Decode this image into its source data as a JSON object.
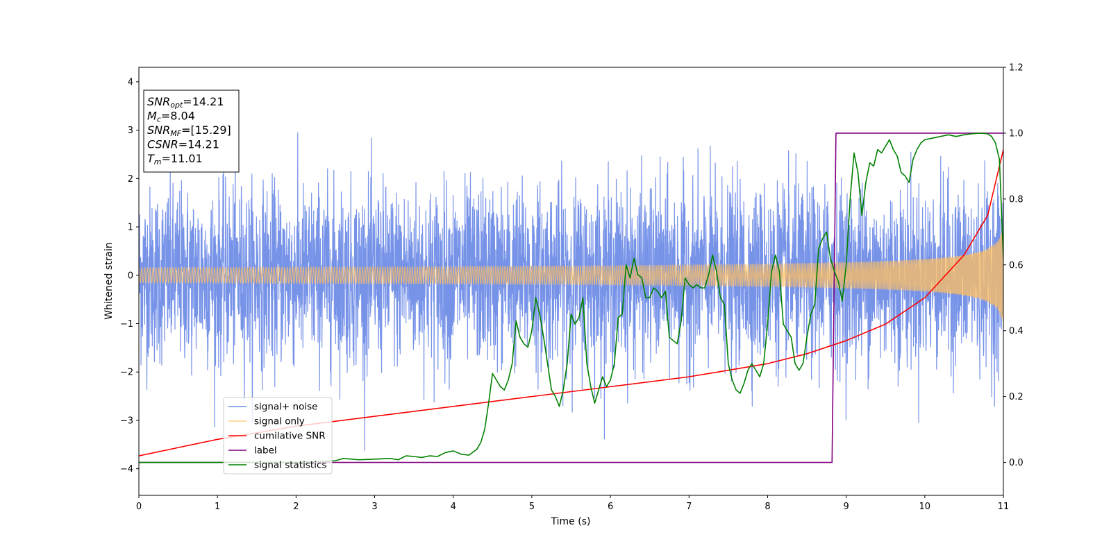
{
  "chart_data": {
    "type": "line",
    "xlabel": "Time (s)",
    "ylabel_left": "Whitened strain",
    "xlim": [
      0,
      11
    ],
    "ylim_left": [
      -4.55,
      4.3
    ],
    "ylim_right": [
      -0.1,
      1.2
    ],
    "x_ticks": [
      0,
      1,
      2,
      3,
      4,
      5,
      6,
      7,
      8,
      9,
      10,
      11
    ],
    "y_ticks_left": [
      -4,
      -3,
      -2,
      -1,
      0,
      1,
      2,
      3,
      4
    ],
    "y_ticks_right": [
      "0.0",
      "0.2",
      "0.4",
      "0.6",
      "0.8",
      "1.0",
      "1.2"
    ],
    "legend_position": "lower-left",
    "annotation": [
      {
        "sym": "SNR",
        "sub": "opt",
        "eq": "=14.21"
      },
      {
        "sym": "M",
        "sub": "c",
        "eq": "=8.04"
      },
      {
        "sym": "SNR",
        "sub": "MF",
        "eq": "=[15.29]"
      },
      {
        "sym": "CSNR",
        "sub": "",
        "eq": "=14.21"
      },
      {
        "sym": "T",
        "sub": "m",
        "eq": "=11.01"
      }
    ],
    "series": [
      {
        "name": "signal+ noise",
        "color": "#6b8ae6",
        "axis": "left",
        "kind": "noise",
        "noise_std": 0.9,
        "x_range": [
          0,
          11
        ]
      },
      {
        "name": "signal only",
        "color": "#ffbf60",
        "axis": "left",
        "kind": "chirp",
        "amplitude_start": 0.05,
        "amplitude_end": 1.0,
        "x_range": [
          0,
          11
        ]
      },
      {
        "name": "cumilative SNR",
        "color": "#ff0000",
        "axis": "right",
        "x": [
          0,
          1,
          2,
          3,
          4,
          5,
          6,
          7,
          8,
          8.5,
          9,
          9.5,
          10,
          10.5,
          10.8,
          11
        ],
        "y": [
          0.02,
          0.07,
          0.11,
          0.14,
          0.17,
          0.2,
          0.23,
          0.26,
          0.3,
          0.33,
          0.37,
          0.42,
          0.5,
          0.63,
          0.75,
          0.95
        ]
      },
      {
        "name": "label",
        "color": "#800080",
        "axis": "right",
        "x": [
          0,
          8.82,
          8.87,
          11
        ],
        "y": [
          0,
          0,
          1,
          1
        ]
      },
      {
        "name": "signal statistics",
        "color": "#008000",
        "axis": "right",
        "x": [
          0,
          0.5,
          1,
          1.5,
          2,
          2.5,
          2.6,
          2.8,
          3,
          3.2,
          3.3,
          3.4,
          3.5,
          3.6,
          3.7,
          3.8,
          3.9,
          4,
          4.1,
          4.2,
          4.3,
          4.35,
          4.4,
          4.45,
          4.5,
          4.55,
          4.6,
          4.65,
          4.7,
          4.75,
          4.8,
          4.85,
          4.9,
          4.95,
          5,
          5.05,
          5.1,
          5.15,
          5.2,
          5.25,
          5.3,
          5.35,
          5.4,
          5.45,
          5.5,
          5.55,
          5.6,
          5.65,
          5.7,
          5.75,
          5.8,
          5.85,
          5.9,
          5.95,
          6,
          6.05,
          6.1,
          6.15,
          6.2,
          6.25,
          6.3,
          6.35,
          6.4,
          6.45,
          6.5,
          6.55,
          6.6,
          6.65,
          6.7,
          6.75,
          6.8,
          6.85,
          6.9,
          6.95,
          7,
          7.05,
          7.1,
          7.15,
          7.2,
          7.25,
          7.3,
          7.35,
          7.4,
          7.45,
          7.5,
          7.55,
          7.6,
          7.65,
          7.7,
          7.75,
          7.8,
          7.85,
          7.9,
          7.95,
          8,
          8.05,
          8.1,
          8.15,
          8.2,
          8.25,
          8.3,
          8.35,
          8.4,
          8.45,
          8.5,
          8.55,
          8.6,
          8.65,
          8.7,
          8.75,
          8.8,
          8.85,
          8.9,
          8.95,
          9,
          9.05,
          9.1,
          9.15,
          9.2,
          9.25,
          9.3,
          9.35,
          9.4,
          9.45,
          9.5,
          9.55,
          9.6,
          9.65,
          9.7,
          9.75,
          9.8,
          9.85,
          9.9,
          9.95,
          10,
          10.1,
          10.2,
          10.3,
          10.4,
          10.5,
          10.6,
          10.7,
          10.8,
          10.85,
          10.9,
          10.95,
          11
        ],
        "y": [
          0,
          0,
          0,
          0,
          0,
          0.005,
          0.012,
          0.008,
          0.01,
          0.012,
          0.008,
          0.02,
          0.018,
          0.015,
          0.02,
          0.018,
          0.03,
          0.035,
          0.025,
          0.022,
          0.04,
          0.06,
          0.1,
          0.18,
          0.27,
          0.25,
          0.23,
          0.22,
          0.25,
          0.3,
          0.43,
          0.38,
          0.36,
          0.35,
          0.4,
          0.5,
          0.45,
          0.38,
          0.3,
          0.22,
          0.2,
          0.17,
          0.22,
          0.3,
          0.45,
          0.42,
          0.44,
          0.5,
          0.3,
          0.23,
          0.18,
          0.22,
          0.26,
          0.23,
          0.25,
          0.3,
          0.44,
          0.45,
          0.6,
          0.56,
          0.62,
          0.57,
          0.56,
          0.5,
          0.5,
          0.53,
          0.52,
          0.5,
          0.52,
          0.38,
          0.37,
          0.36,
          0.43,
          0.56,
          0.54,
          0.53,
          0.54,
          0.53,
          0.53,
          0.57,
          0.63,
          0.58,
          0.5,
          0.48,
          0.3,
          0.25,
          0.22,
          0.21,
          0.24,
          0.28,
          0.3,
          0.28,
          0.26,
          0.3,
          0.42,
          0.58,
          0.63,
          0.58,
          0.42,
          0.4,
          0.38,
          0.3,
          0.28,
          0.3,
          0.38,
          0.45,
          0.48,
          0.65,
          0.68,
          0.7,
          0.62,
          0.58,
          0.55,
          0.49,
          0.6,
          0.8,
          0.94,
          0.88,
          0.75,
          0.85,
          0.91,
          0.9,
          0.95,
          0.94,
          0.96,
          0.98,
          0.95,
          0.93,
          0.88,
          0.87,
          0.85,
          0.92,
          0.95,
          0.97,
          0.98,
          0.985,
          0.99,
          0.995,
          0.99,
          0.995,
          0.998,
          1.0,
          0.998,
          0.99,
          0.97,
          0.92,
          0.62
        ]
      }
    ]
  }
}
